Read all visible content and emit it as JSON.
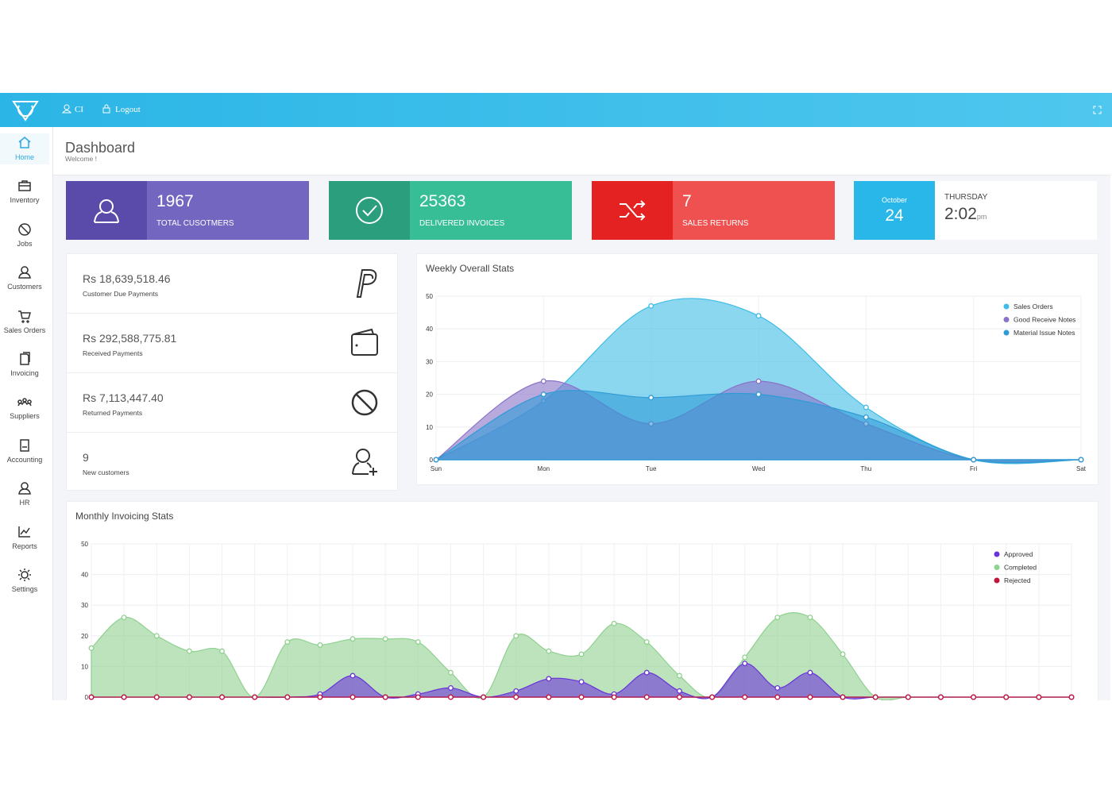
{
  "topbar": {
    "user": "CI",
    "logout": "Logout"
  },
  "sidebar": [
    "Home",
    "Inventory",
    "Jobs",
    "Customers",
    "Sales Orders",
    "Invoicing",
    "Suppliers",
    "Accounting",
    "HR",
    "Reports",
    "Settings"
  ],
  "header": {
    "title": "Dashboard",
    "subtitle": "Welcome !"
  },
  "stat_cards": [
    {
      "value": 1967,
      "label": "TOTAL CUSOTMERS"
    },
    {
      "value": 25363,
      "label": "DELIVERED INVOICES"
    },
    {
      "value": 7,
      "label": "SALES RETURNS"
    }
  ],
  "date_card": {
    "month": "October",
    "day": 24,
    "weekday": "THURSDAY",
    "time": "2:02",
    "ampm": "pm"
  },
  "payments": [
    {
      "amount": "Rs 18,639,518.46",
      "label": "Customer Due Payments"
    },
    {
      "amount": "Rs 292,588,775.81",
      "label": "Received Payments"
    },
    {
      "amount": "Rs 7,113,447.40",
      "label": "Returned Payments"
    },
    {
      "amount": "9",
      "label": "New customers"
    }
  ],
  "chart_data": [
    {
      "type": "area",
      "title": "Weekly Overall Stats",
      "categories": [
        "Sun",
        "Mon",
        "Tue",
        "Wed",
        "Thu",
        "Fri",
        "Sat"
      ],
      "series": [
        {
          "name": "Sales Orders",
          "color": "#3fbde6",
          "values": [
            0,
            18,
            47,
            44,
            16,
            0,
            0
          ]
        },
        {
          "name": "Good Receive Notes",
          "color": "#8a72c8",
          "values": [
            0,
            24,
            11,
            24,
            11,
            0,
            0
          ]
        },
        {
          "name": "Material Issue Notes",
          "color": "#2f9bd6",
          "values": [
            0,
            20,
            19,
            20,
            13,
            0,
            0
          ]
        }
      ],
      "ylim": [
        0,
        50
      ],
      "yticks": [
        0,
        10,
        20,
        30,
        40,
        50
      ],
      "grid": true,
      "legend": "top-right"
    },
    {
      "type": "area",
      "title": "Monthly Invoicing Stats",
      "series": [
        {
          "name": "Approved",
          "color": "#6a33d8",
          "values": [
            0,
            0,
            0,
            0,
            0,
            0,
            0,
            1,
            7,
            0,
            1,
            3,
            0,
            2,
            6,
            5,
            1,
            8,
            2,
            0,
            11,
            3,
            8,
            0,
            0,
            0,
            0,
            0,
            0,
            0,
            0
          ]
        },
        {
          "name": "Completed",
          "color": "#8fd18f",
          "values": [
            16,
            26,
            20,
            15,
            15,
            0,
            18,
            17,
            19,
            19,
            18,
            8,
            0,
            20,
            15,
            14,
            24,
            18,
            7,
            0,
            13,
            26,
            26,
            14,
            0,
            0,
            0,
            0,
            0,
            0,
            0
          ]
        },
        {
          "name": "Rejected",
          "color": "#c0143c",
          "values": [
            0,
            0,
            0,
            0,
            0,
            0,
            0,
            0,
            0,
            0,
            0,
            0,
            0,
            0,
            0,
            0,
            0,
            0,
            0,
            0,
            0,
            0,
            0,
            0,
            0,
            0,
            0,
            0,
            0,
            0,
            0
          ]
        }
      ],
      "draw_order": [
        1,
        0,
        2
      ],
      "ylim": [
        0,
        50
      ],
      "yticks": [
        0,
        10,
        20,
        30,
        40,
        50
      ],
      "grid": true,
      "legend": "top-right"
    }
  ]
}
